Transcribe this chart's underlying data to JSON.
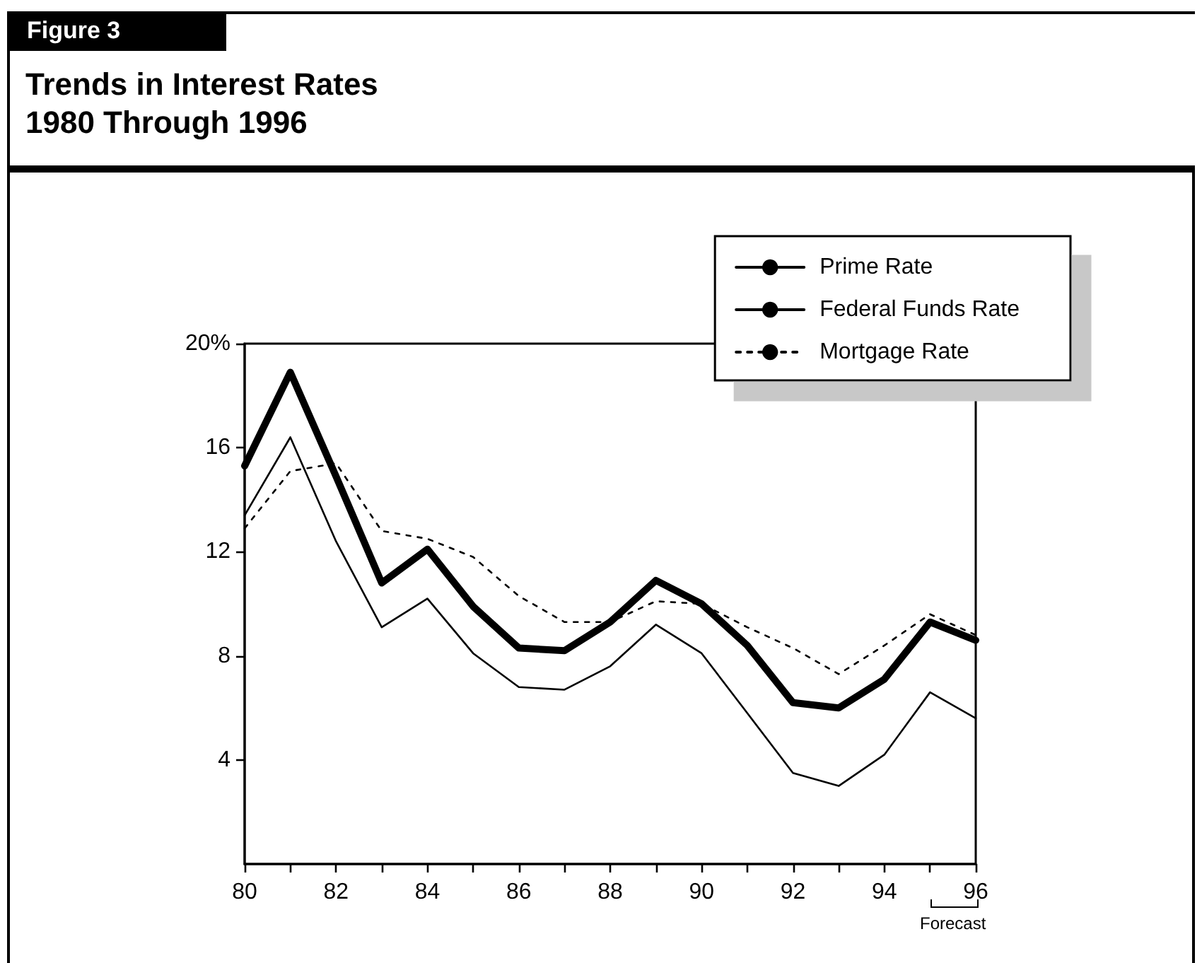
{
  "chart_data": {
    "type": "line",
    "subtitle": "Figure 3",
    "title": "Trends in Interest Rates\n1980 Through 1996",
    "x": [
      80,
      81,
      82,
      83,
      84,
      85,
      86,
      87,
      88,
      89,
      90,
      91,
      92,
      93,
      94,
      95,
      96
    ],
    "series": [
      {
        "name": "Prime Rate",
        "color": "#000000",
        "line_style": "solid",
        "values": [
          15.3,
          18.9,
          14.9,
          10.8,
          12.1,
          9.9,
          8.3,
          8.2,
          9.3,
          10.9,
          10.0,
          8.4,
          6.2,
          6.0,
          7.1,
          9.3,
          8.6
        ]
      },
      {
        "name": "Federal Funds Rate",
        "color": "#000000",
        "line_style": "solid",
        "values": [
          13.4,
          16.4,
          12.4,
          9.1,
          10.2,
          8.1,
          6.8,
          6.7,
          7.6,
          9.2,
          8.1,
          5.8,
          3.5,
          3.0,
          4.2,
          6.6,
          5.6
        ]
      },
      {
        "name": "Mortgage Rate",
        "color": "#000000",
        "line_style": "dotted",
        "values": [
          12.9,
          15.1,
          15.4,
          12.8,
          12.5,
          11.8,
          10.3,
          9.3,
          9.3,
          10.1,
          10.0,
          9.1,
          8.3,
          7.3,
          8.4,
          9.6,
          8.8
        ]
      }
    ],
    "xlim": [
      80,
      96
    ],
    "xticks": [
      80,
      {
        "value": 81,
        "label": null
      },
      82,
      {
        "value": 83,
        "label": null
      },
      84,
      {
        "value": 85,
        "label": null
      },
      86,
      {
        "value": 87,
        "label": null
      },
      88,
      {
        "value": 89,
        "label": null
      },
      90,
      {
        "value": 91,
        "label": null
      },
      92,
      {
        "value": 93,
        "label": null
      },
      94,
      {
        "value": 95,
        "label": null
      },
      96
    ],
    "ylim": [
      0,
      20
    ],
    "yticks": [
      4,
      8,
      12,
      16,
      {
        "value": 20,
        "label": "20%"
      }
    ],
    "annotations": [
      "Forecast"
    ],
    "legend": "top right",
    "grid": false,
    "marker": "none"
  }
}
